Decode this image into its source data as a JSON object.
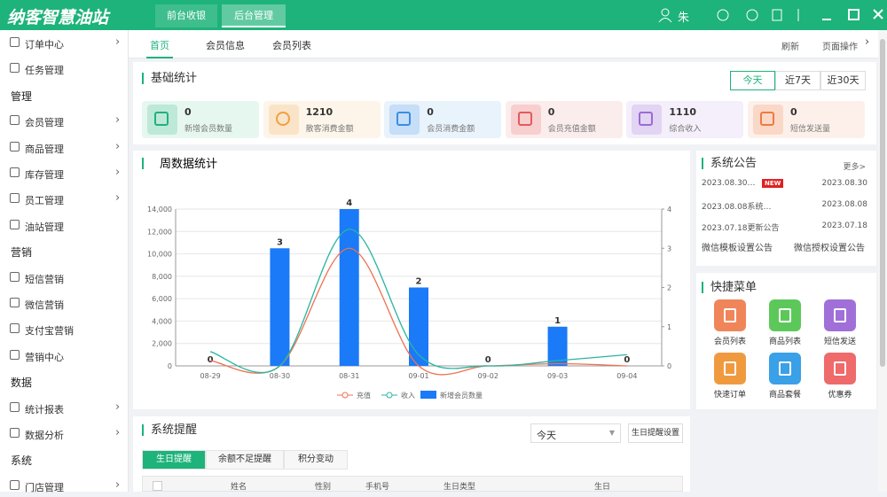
{
  "header": {
    "logo": "纳客智慧油站",
    "tabs": [
      "前台收银",
      "后台管理"
    ],
    "user": "朱"
  },
  "sidebar": [
    {
      "label": "订单中心",
      "submenu": true
    },
    {
      "label": "任务管理"
    },
    {
      "label": "管理",
      "heading": true
    },
    {
      "label": "会员管理",
      "submenu": true
    },
    {
      "label": "商品管理",
      "submenu": true
    },
    {
      "label": "库存管理",
      "submenu": true
    },
    {
      "label": "员工管理",
      "submenu": true
    },
    {
      "label": "油站管理"
    },
    {
      "label": "营销",
      "heading": true
    },
    {
      "label": "短信营销"
    },
    {
      "label": "微信营销"
    },
    {
      "label": "支付宝营销"
    },
    {
      "label": "营销中心"
    },
    {
      "label": "数据",
      "heading": true
    },
    {
      "label": "统计报表",
      "submenu": true
    },
    {
      "label": "数据分析",
      "submenu": true
    },
    {
      "label": "系统",
      "heading": true
    },
    {
      "label": "门店管理",
      "submenu": true
    }
  ],
  "tabs": [
    "首页",
    "会员信息",
    "会员列表"
  ],
  "toolbar": [
    "刷新",
    "页面操作"
  ],
  "stats": {
    "title": "基础统计",
    "ranges": [
      "今天",
      "近7天",
      "近30天"
    ],
    "cards": [
      {
        "value": 0,
        "label": "新增会员数量",
        "color": "#1db37a"
      },
      {
        "value": 1210,
        "label": "散客消费金额",
        "color": "#f0a040"
      },
      {
        "value": 0,
        "label": "会员消费金额",
        "color": "#3a8ee6"
      },
      {
        "value": 0,
        "label": "会员充值金额",
        "color": "#e55a5a"
      },
      {
        "value": 1110,
        "label": "综合收入",
        "color": "#9b6ad6"
      },
      {
        "value": 0,
        "label": "短信发送量",
        "color": "#f07a40"
      }
    ]
  },
  "chart_data": {
    "type": "bar",
    "title": "周数据统计",
    "categories": [
      "08-29",
      "08-30",
      "08-31",
      "09-01",
      "09-02",
      "09-03",
      "09-04"
    ],
    "series": [
      {
        "name": "充值",
        "type": "line",
        "color": "#f07050",
        "values": [
          470,
          0,
          10500,
          0,
          0,
          200,
          0
        ]
      },
      {
        "name": "收入",
        "type": "line",
        "color": "#2ab5a0",
        "values": [
          1270,
          0,
          12200,
          1000,
          0,
          470,
          1000
        ]
      },
      {
        "name": "新增会员数量",
        "type": "bar",
        "axis": "y2",
        "color": "#1a7af8",
        "values": [
          0,
          3,
          4,
          2,
          0,
          1,
          0
        ]
      }
    ],
    "ylim": [
      0,
      14000
    ],
    "yticks": [
      0,
      {
        "value": 2000,
        "label": "2,000"
      },
      {
        "value": 4000,
        "label": "4,000"
      },
      {
        "value": 6000,
        "label": "6,000"
      },
      {
        "value": 8000,
        "label": "8,000"
      },
      {
        "value": 10000,
        "label": "10,000"
      },
      {
        "value": 12000,
        "label": "12,000"
      },
      {
        "value": 14000,
        "label": "14,000"
      }
    ],
    "y2lim": [
      0,
      4
    ],
    "y2ticks": [
      0,
      1,
      2,
      3,
      4
    ],
    "grid": true
  },
  "notices": {
    "title": "系统公告",
    "more": "更多>",
    "items": [
      {
        "title": "2023.08.30…",
        "badge": "NEW",
        "date": "2023.08.30"
      },
      {
        "title": "2023.08.08系统…",
        "date": "2023.08.08"
      },
      {
        "title": "2023.07.18更新公告",
        "date": "2023.07.18"
      }
    ],
    "links": [
      "微信模板设置公告",
      "微信授权设置公告"
    ]
  },
  "quick": {
    "title": "快捷菜单",
    "items": [
      {
        "label": "会员列表",
        "color": "#f0855a"
      },
      {
        "label": "商品列表",
        "color": "#5cc85a"
      },
      {
        "label": "短信发送",
        "color": "#a070d8"
      },
      {
        "label": "快速订单",
        "color": "#f09a40"
      },
      {
        "label": "商品套餐",
        "color": "#3aa0e8"
      },
      {
        "label": "优惠券",
        "color": "#ef6a6a"
      }
    ]
  },
  "reminder": {
    "title": "系统提醒",
    "select": "今天",
    "button": "生日提醒设置",
    "tabs": [
      "生日提醒",
      "余额不足提醒",
      "积分变动"
    ],
    "columns": [
      "姓名",
      "性别",
      "手机号",
      "生日类型",
      "生日"
    ]
  }
}
